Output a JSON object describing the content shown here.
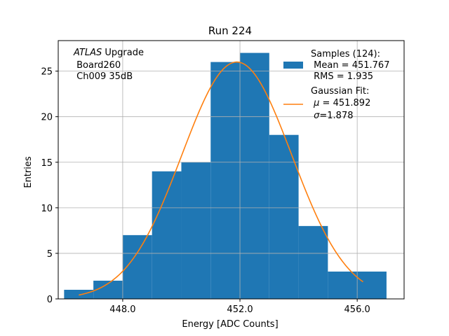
{
  "chart_data": {
    "type": "bar",
    "title": "Run 224",
    "xlabel": "Energy [ADC Counts]",
    "ylabel": "Entries",
    "xlim": [
      445.8,
      457.6
    ],
    "ylim": [
      0,
      28.35
    ],
    "grid": true,
    "xticks": [
      448.0,
      452.0,
      456.0
    ],
    "xtick_labels": [
      "448.0",
      "452.0",
      "456.0"
    ],
    "yticks": [
      0,
      5,
      10,
      15,
      20,
      25
    ],
    "ytick_labels": [
      "0",
      "5",
      "10",
      "15",
      "20",
      "25"
    ],
    "bin_edges": [
      446,
      447,
      448,
      449,
      450,
      451,
      452,
      453,
      454,
      455,
      456,
      457
    ],
    "values": [
      1,
      2,
      7,
      14,
      15,
      26,
      27,
      18,
      8,
      3,
      3
    ],
    "bar_color": "#1f77b4",
    "fit": {
      "mu": 451.892,
      "sigma": 1.878,
      "amplitude": 26,
      "x_range": [
        446.5,
        456.2
      ],
      "color": "#ff7f0e"
    },
    "annotation": {
      "italic": "ATLAS",
      "rest": " Upgrade",
      "line2": " Board260",
      "line3": " Ch009 35dB"
    },
    "legend": {
      "position": "top-right",
      "samples_lines": [
        "Samples (124):",
        " Mean = 451.767",
        " RMS = 1.935"
      ],
      "fit_title": "Gaussian Fit:",
      "fit_mu_symbol": "μ",
      "fit_mu_rest": " = 451.892",
      "fit_sigma_symbol": "σ",
      "fit_sigma_rest": "=1.878"
    }
  }
}
